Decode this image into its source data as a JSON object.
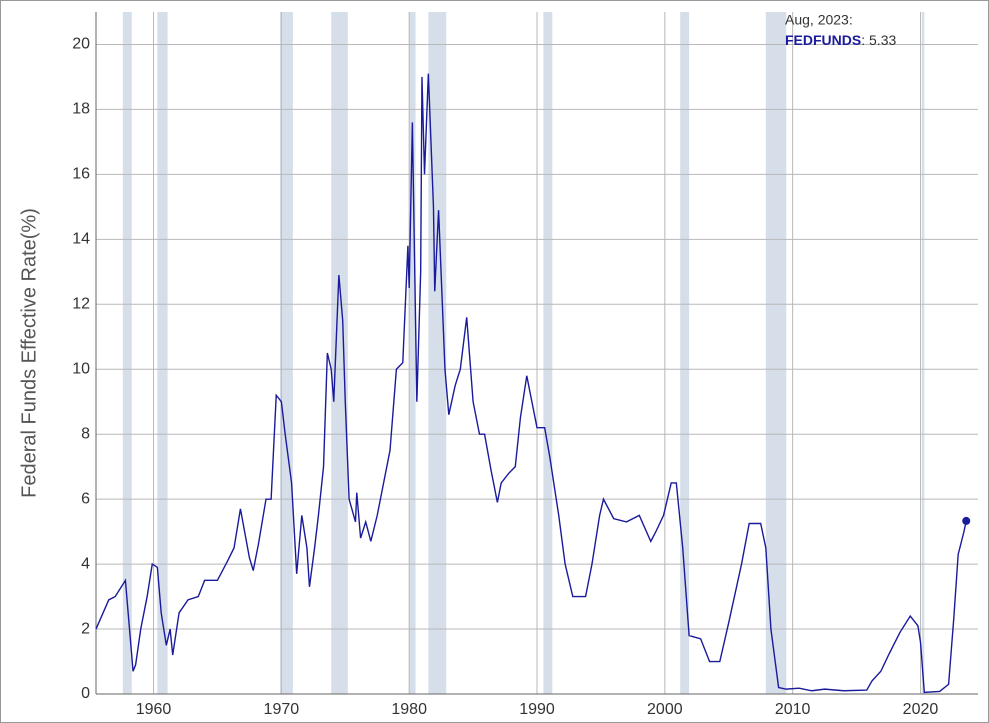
{
  "chart_data": {
    "type": "line",
    "y_label": "Federal Funds Effective Rate(%)",
    "series_name": "FEDFUNDS",
    "color": "#1a1a9c",
    "recession_color": "#d6deea",
    "grid": true,
    "xlim": [
      1955.5,
      2024.5
    ],
    "ylim": [
      0,
      21
    ],
    "xticks": [
      1960,
      1970,
      1980,
      1990,
      2000,
      2010,
      2020
    ],
    "yticks": [
      0,
      2,
      4,
      6,
      8,
      10,
      12,
      14,
      16,
      18,
      20
    ],
    "recessions": [
      [
        1957.6,
        1958.3
      ],
      [
        1960.3,
        1961.1
      ],
      [
        1969.9,
        1970.9
      ],
      [
        1973.9,
        1975.2
      ],
      [
        1980.0,
        1980.5
      ],
      [
        1981.5,
        1982.9
      ],
      [
        1990.5,
        1991.2
      ],
      [
        2001.2,
        2001.9
      ],
      [
        2007.9,
        2009.5
      ],
      [
        2020.1,
        2020.3
      ]
    ],
    "x": [
      1955.5,
      1956.5,
      1957.0,
      1957.8,
      1958.4,
      1958.6,
      1959.0,
      1959.5,
      1959.9,
      1960.3,
      1960.6,
      1961.0,
      1961.3,
      1961.5,
      1962.0,
      1962.7,
      1963.5,
      1964.0,
      1965.0,
      1965.8,
      1966.3,
      1966.8,
      1967.5,
      1967.8,
      1968.2,
      1968.8,
      1969.2,
      1969.6,
      1970.0,
      1970.3,
      1970.8,
      1971.2,
      1971.6,
      1972.0,
      1972.2,
      1972.6,
      1972.9,
      1973.3,
      1973.6,
      1973.9,
      1974.1,
      1974.5,
      1974.8,
      1975.0,
      1975.3,
      1975.8,
      1975.9,
      1976.2,
      1976.6,
      1977.0,
      1977.5,
      1978.0,
      1978.5,
      1979.0,
      1979.5,
      1979.9,
      1980.0,
      1980.25,
      1980.6,
      1980.9,
      1981.0,
      1981.2,
      1981.5,
      1981.9,
      1982.0,
      1982.3,
      1982.8,
      1983.1,
      1983.6,
      1984.0,
      1984.5,
      1985.0,
      1985.5,
      1985.9,
      1986.4,
      1986.9,
      1987.2,
      1987.8,
      1988.3,
      1988.7,
      1989.2,
      1989.6,
      1990.0,
      1990.6,
      1991.0,
      1991.7,
      1992.2,
      1992.8,
      1993.8,
      1994.3,
      1994.9,
      1995.2,
      1996.0,
      1997.0,
      1998.0,
      1998.9,
      1999.3,
      1999.9,
      2000.5,
      2000.9,
      2001.4,
      2001.9,
      2002.8,
      2003.5,
      2004.3,
      2005.0,
      2006.0,
      2006.6,
      2007.5,
      2007.9,
      2008.3,
      2008.9,
      2009.5,
      2010.5,
      2011.5,
      2012.5,
      2014.0,
      2015.8,
      2016.2,
      2016.9,
      2017.5,
      2018.4,
      2019.2,
      2019.8,
      2020.0,
      2020.3,
      2021.5,
      2022.2,
      2022.6,
      2022.95,
      2023.4,
      2023.58
    ],
    "values": [
      2.0,
      2.9,
      3.0,
      3.5,
      0.7,
      0.9,
      2.0,
      3.0,
      4.0,
      3.9,
      2.5,
      1.5,
      2.0,
      1.2,
      2.5,
      2.9,
      3.0,
      3.5,
      3.5,
      4.1,
      4.5,
      5.7,
      4.2,
      3.8,
      4.6,
      6.0,
      6.0,
      9.2,
      9.0,
      8.0,
      6.5,
      3.7,
      5.5,
      4.5,
      3.3,
      4.5,
      5.5,
      7.0,
      10.5,
      10.0,
      9.0,
      12.9,
      11.5,
      9.0,
      6.0,
      5.3,
      6.2,
      4.8,
      5.3,
      4.7,
      5.5,
      6.5,
      7.5,
      10.0,
      10.2,
      13.8,
      12.5,
      17.6,
      9.0,
      13.0,
      19.0,
      16.0,
      19.1,
      15.0,
      12.4,
      14.9,
      10.0,
      8.6,
      9.5,
      10.0,
      11.6,
      9.0,
      8.0,
      8.0,
      6.9,
      5.9,
      6.5,
      6.8,
      7.0,
      8.5,
      9.8,
      9.0,
      8.2,
      8.2,
      7.3,
      5.5,
      4.0,
      3.0,
      3.0,
      4.0,
      5.5,
      6.0,
      5.4,
      5.3,
      5.5,
      4.7,
      5.0,
      5.5,
      6.5,
      6.5,
      4.5,
      1.8,
      1.7,
      1.0,
      1.0,
      2.2,
      4.0,
      5.25,
      5.25,
      4.5,
      2.0,
      0.2,
      0.15,
      0.18,
      0.1,
      0.15,
      0.1,
      0.12,
      0.4,
      0.7,
      1.2,
      1.9,
      2.4,
      2.1,
      1.6,
      0.05,
      0.08,
      0.3,
      2.3,
      4.3,
      5.0,
      5.33
    ],
    "tooltip": {
      "date": "Aug, 2023:",
      "name": "FEDFUNDS",
      "separator": ": ",
      "value": 5.33
    }
  }
}
